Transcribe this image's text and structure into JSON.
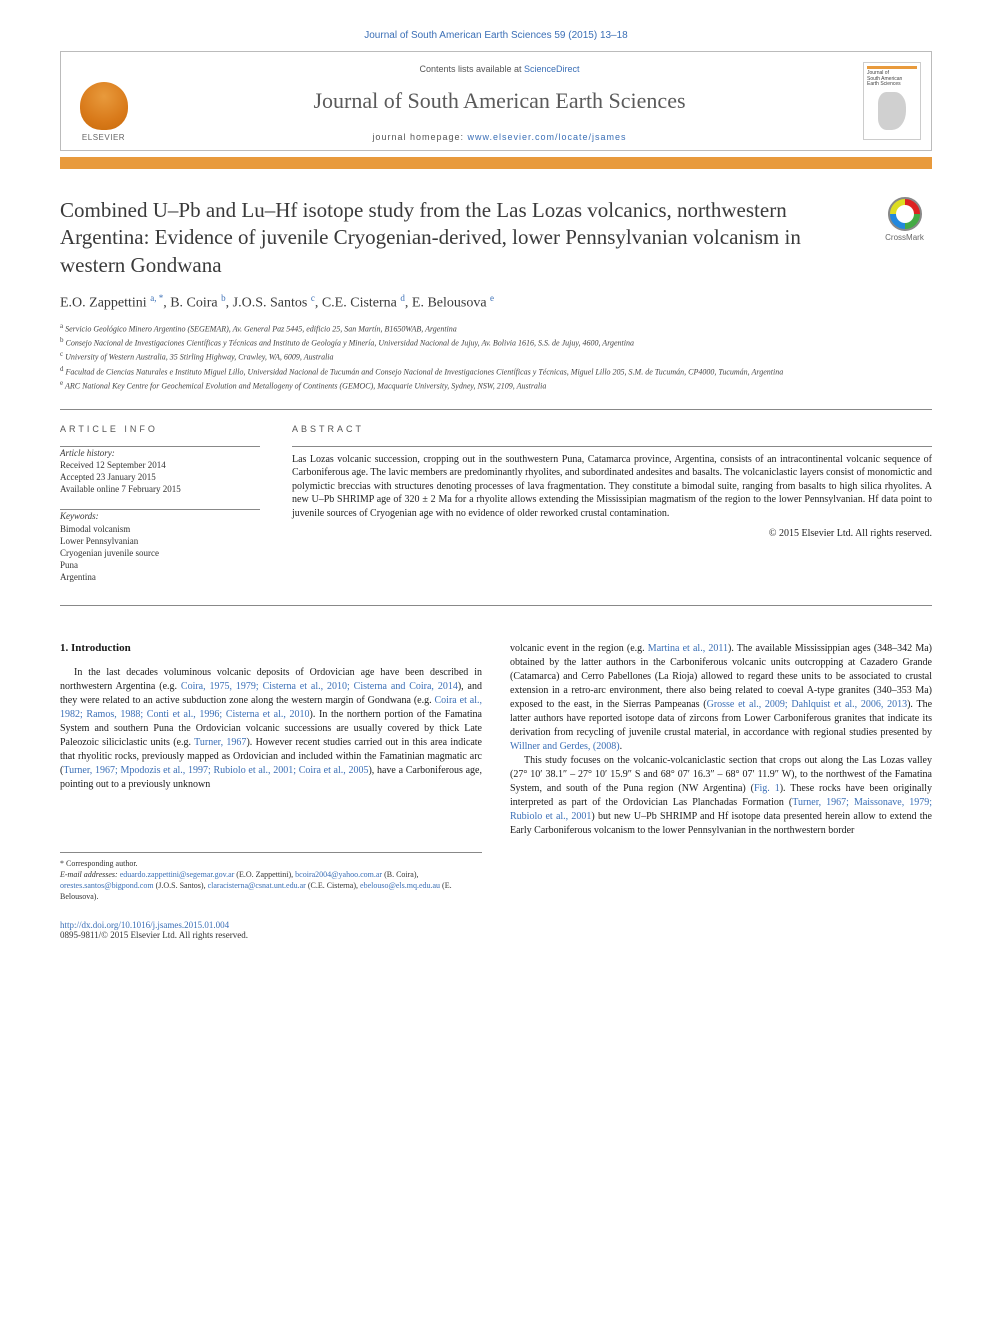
{
  "journal_ref": "Journal of South American Earth Sciences 59 (2015) 13–18",
  "header": {
    "contents_prefix": "Contents lists available at ",
    "contents_link": "ScienceDirect",
    "journal_title": "Journal of South American Earth Sciences",
    "homepage_prefix": "journal homepage: ",
    "homepage_url": "www.elsevier.com/locate/jsames",
    "publisher": "ELSEVIER",
    "cover_label_1": "Journal of",
    "cover_label_2": "South American",
    "cover_label_3": "Earth Sciences"
  },
  "crossmark_label": "CrossMark",
  "title": "Combined U–Pb and Lu–Hf isotope study from the Las Lozas volcanics, northwestern Argentina: Evidence of juvenile Cryogenian-derived, lower Pennsylvanian volcanism in western Gondwana",
  "authors_html": "E.O. Zappettini <sup>a, *</sup>, B. Coira <sup>b</sup>, J.O.S. Santos <sup>c</sup>, C.E. Cisterna <sup>d</sup>, E. Belousova <sup>e</sup>",
  "affiliations": [
    "a Servicio Geológico Minero Argentino (SEGEMAR), Av. General Paz 5445, edificio 25, San Martín, B1650WAB, Argentina",
    "b Consejo Nacional de Investigaciones Científicas y Técnicas and Instituto de Geología y Minería, Universidad Nacional de Jujuy, Av. Bolivia 1616, S.S. de Jujuy, 4600, Argentina",
    "c University of Western Australia, 35 Stirling Highway, Crawley, WA, 6009, Australia",
    "d Facultad de Ciencias Naturales e Instituto Miguel Lillo, Universidad Nacional de Tucumán and Consejo Nacional de Investigaciones Científicas y Técnicas, Miguel Lillo 205, S.M. de Tucumán, CP4000, Tucumán, Argentina",
    "e ARC National Key Centre for Geochemical Evolution and Metallogeny of Continents (GEMOC), Macquarie University, Sydney, NSW, 2109, Australia"
  ],
  "info": {
    "head": "ARTICLE INFO",
    "history_head": "Article history:",
    "received": "Received 12 September 2014",
    "accepted": "Accepted 23 January 2015",
    "online": "Available online 7 February 2015",
    "keywords_head": "Keywords:",
    "keywords": [
      "Bimodal volcanism",
      "Lower Pennsylvanian",
      "Cryogenian juvenile source",
      "Puna",
      "Argentina"
    ]
  },
  "abstract": {
    "head": "ABSTRACT",
    "text": "Las Lozas volcanic succession, cropping out in the southwestern Puna, Catamarca province, Argentina, consists of an intracontinental volcanic sequence of Carboniferous age. The lavic members are predominantly rhyolites, and subordinated andesites and basalts. The volcaniclastic layers consist of monomictic and polymictic breccias with structures denoting processes of lava fragmentation. They constitute a bimodal suite, ranging from basalts to high silica rhyolites. A new U–Pb SHRIMP age of 320 ± 2 Ma for a rhyolite allows extending the Mississipian magmatism of the region to the lower Pennsylvanian. Hf data point to juvenile sources of Cryogenian age with no evidence of older reworked crustal contamination.",
    "copyright": "© 2015 Elsevier Ltd. All rights reserved."
  },
  "section1": {
    "heading": "1. Introduction",
    "p1_parts": [
      {
        "t": "In the last decades voluminous volcanic deposits of Ordovician age have been described in northwestern Argentina (e.g. ",
        "r": false
      },
      {
        "t": "Coira, 1975, 1979; Cisterna et al., 2010; Cisterna and Coira, 2014",
        "r": true
      },
      {
        "t": "), and they were related to an active subduction zone along the western margin of Gondwana (e.g. ",
        "r": false
      },
      {
        "t": "Coira et al., 1982; Ramos, 1988; Conti et al., 1996; Cisterna et al., 2010",
        "r": true
      },
      {
        "t": "). In the northern portion of the Famatina System and southern Puna the Ordovician volcanic successions are usually covered by thick Late Paleozoic siliciclastic units (e.g. ",
        "r": false
      },
      {
        "t": "Turner, 1967",
        "r": true
      },
      {
        "t": "). However recent studies carried out in this area indicate that rhyolitic rocks, previously mapped as Ordovician and included within the Famatinian magmatic arc (",
        "r": false
      },
      {
        "t": "Turner, 1967; Mpodozis et al., 1997; Rubiolo et al., 2001; Coira et al., 2005",
        "r": true
      },
      {
        "t": "), have a Carboniferous age, pointing out to a previously unknown",
        "r": false
      }
    ],
    "p2_parts": [
      {
        "t": "volcanic event in the region (e.g. ",
        "r": false
      },
      {
        "t": "Martina et al., 2011",
        "r": true
      },
      {
        "t": "). The available Mississippian ages (348–342 Ma) obtained by the latter authors in the Carboniferous volcanic units outcropping at Cazadero Grande (Catamarca) and Cerro Pabellones (La Rioja) allowed to regard these units to be associated to crustal extension in a retro-arc environment, there also being related to coeval A-type granites (340–353 Ma) exposed to the east, in the Sierras Pampeanas (",
        "r": false
      },
      {
        "t": "Grosse et al., 2009; Dahlquist et al., 2006, 2013",
        "r": true
      },
      {
        "t": "). The latter authors have reported isotope data of zircons from Lower Carboniferous granites that indicate its derivation from recycling of juvenile crustal material, in accordance with regional studies presented by ",
        "r": false
      },
      {
        "t": "Willner and Gerdes, (2008)",
        "r": true
      },
      {
        "t": ".",
        "r": false
      }
    ],
    "p3_parts": [
      {
        "t": "This study focuses on the volcanic-volcaniclastic section that crops out along the Las Lozas valley (27° 10′ 38.1″ – 27° 10′ 15.9″ S and 68° 07′ 16.3″ – 68° 07′ 11.9″ W), to the northwest of the Famatina System, and south of the Puna region (NW Argentina) (",
        "r": false
      },
      {
        "t": "Fig. 1",
        "r": true
      },
      {
        "t": "). These rocks have been originally interpreted as part of the Ordovician Las Planchadas Formation (",
        "r": false
      },
      {
        "t": "Turner, 1967; Maissonave, 1979; Rubiolo et al., 2001",
        "r": true
      },
      {
        "t": ") but new U–Pb SHRIMP and Hf isotope data presented herein allow to extend the Early Carboniferous volcanism to the lower Pennsylvanian in the northwestern border",
        "r": false
      }
    ]
  },
  "footnotes": {
    "corr": "* Corresponding author.",
    "emails_label": "E-mail addresses:",
    "emails": [
      {
        "addr": "eduardo.zappettini@segemar.gov.ar",
        "who": "(E.O. Zappettini)"
      },
      {
        "addr": "bcoira2004@yahoo.com.ar",
        "who": "(B. Coira)"
      },
      {
        "addr": "orestes.santos@bigpond.com",
        "who": "(J.O.S. Santos)"
      },
      {
        "addr": "claracisterna@csnat.unt.edu.ar",
        "who": "(C.E. Cisterna)"
      },
      {
        "addr": "ebelouso@els.mq.edu.au",
        "who": "(E. Belousova)"
      }
    ]
  },
  "footer": {
    "doi": "http://dx.doi.org/10.1016/j.jsames.2015.01.004",
    "issn": "0895-9811/© 2015 Elsevier Ltd. All rights reserved."
  },
  "colors": {
    "accent_orange": "#e89a3c",
    "link_blue": "#3b6fb6",
    "text": "#1a1a1a",
    "muted": "#555"
  }
}
